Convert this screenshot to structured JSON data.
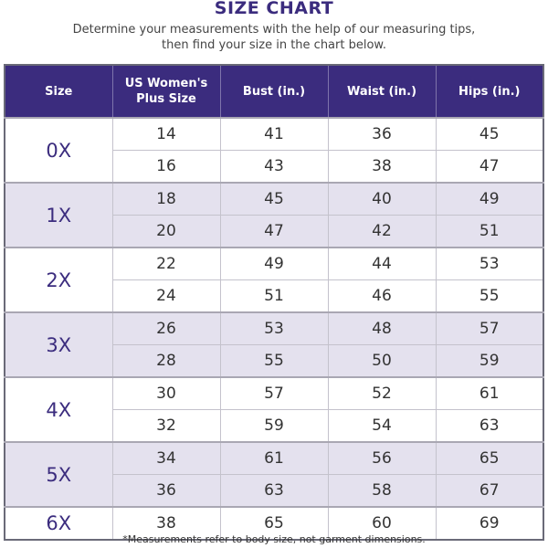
{
  "title": "SIZE CHART",
  "subtitle_line1": "Determine your measurements with the help of our measuring tips,",
  "subtitle_line2": "then find your size in the chart below.",
  "columns": [
    "Size",
    "US Women's Plus Size",
    "Bust (in.)",
    "Waist (in.)",
    "Hips (in.)"
  ],
  "groups": [
    {
      "size": "0X",
      "rows": [
        [
          "14",
          "41",
          "36",
          "45"
        ],
        [
          "16",
          "43",
          "38",
          "47"
        ]
      ]
    },
    {
      "size": "1X",
      "rows": [
        [
          "18",
          "45",
          "40",
          "49"
        ],
        [
          "20",
          "47",
          "42",
          "51"
        ]
      ]
    },
    {
      "size": "2X",
      "rows": [
        [
          "22",
          "49",
          "44",
          "53"
        ],
        [
          "24",
          "51",
          "46",
          "55"
        ]
      ]
    },
    {
      "size": "3X",
      "rows": [
        [
          "26",
          "53",
          "48",
          "57"
        ],
        [
          "28",
          "55",
          "50",
          "59"
        ]
      ]
    },
    {
      "size": "4X",
      "rows": [
        [
          "30",
          "57",
          "52",
          "61"
        ],
        [
          "32",
          "59",
          "54",
          "63"
        ]
      ]
    },
    {
      "size": "5X",
      "rows": [
        [
          "34",
          "61",
          "56",
          "65"
        ],
        [
          "36",
          "63",
          "58",
          "67"
        ]
      ]
    },
    {
      "size": "6X",
      "rows": [
        [
          "38",
          "65",
          "60",
          "69"
        ]
      ]
    }
  ],
  "footnote": "*Measurements refer to body size, not garment dimensions.",
  "colors": {
    "header": "#3b2c7e",
    "shaded_row": "#e4e1ee"
  }
}
